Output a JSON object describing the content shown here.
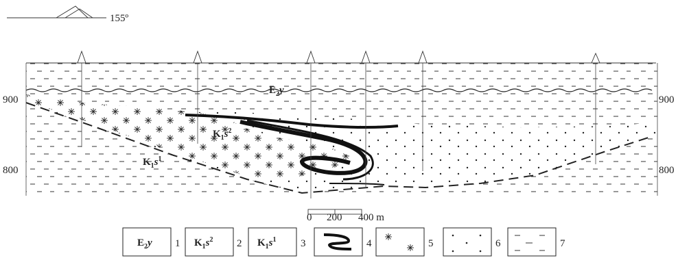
{
  "orientation": {
    "azimuth": "155º"
  },
  "elevation_labels": {
    "upper": "900",
    "lower": "800"
  },
  "units": {
    "e2y": {
      "base": "E",
      "sub": "2",
      "suffix": "y"
    },
    "k1s2": {
      "base": "K",
      "sub": "1",
      "mid": "s",
      "sup": "2"
    },
    "k1s1": {
      "base": "K",
      "sub": "1",
      "mid": "s",
      "sup": "1"
    }
  },
  "scale_bar": {
    "ticks": [
      "0",
      "200",
      "400 m"
    ]
  },
  "legend": {
    "items": [
      {
        "num": "1"
      },
      {
        "num": "2"
      },
      {
        "num": "3"
      },
      {
        "num": "4"
      },
      {
        "num": "5"
      },
      {
        "num": "6"
      },
      {
        "num": "7"
      }
    ]
  },
  "colors": {
    "ink": "#222222",
    "ore": "#111111",
    "paper": "#ffffff"
  }
}
